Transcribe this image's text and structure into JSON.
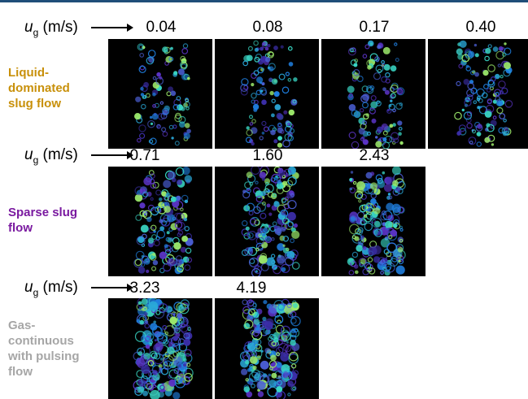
{
  "colors": {
    "liquid": "#c8900a",
    "sparse": "#7a1aa0",
    "gas": "#a6a6a6",
    "rule": "#1f4e79"
  },
  "label": {
    "symbol": "u",
    "subscript": "g",
    "unit": "(m/s)"
  },
  "rows": [
    {
      "regime": "Liquid-dominated slug flow",
      "regime_lines": [
        "Liquid-",
        "dominated",
        "slug flow"
      ],
      "speeds": [
        "0.04",
        "0.08",
        "0.17",
        "0.40"
      ],
      "density": [
        0.25,
        0.27,
        0.35,
        0.4
      ]
    },
    {
      "regime": "Sparse slug flow",
      "regime_lines": [
        "Sparse slug",
        "flow"
      ],
      "speeds": [
        "0.71",
        "1.60",
        "2.43"
      ],
      "density": [
        0.55,
        0.65,
        0.8
      ]
    },
    {
      "regime": "Gas-continuous with pulsing flow",
      "regime_lines": [
        "Gas-",
        "continuous",
        "with pulsing",
        "flow"
      ],
      "speeds": [
        "3.23",
        "4.19"
      ],
      "density": [
        0.95,
        0.85
      ]
    }
  ]
}
